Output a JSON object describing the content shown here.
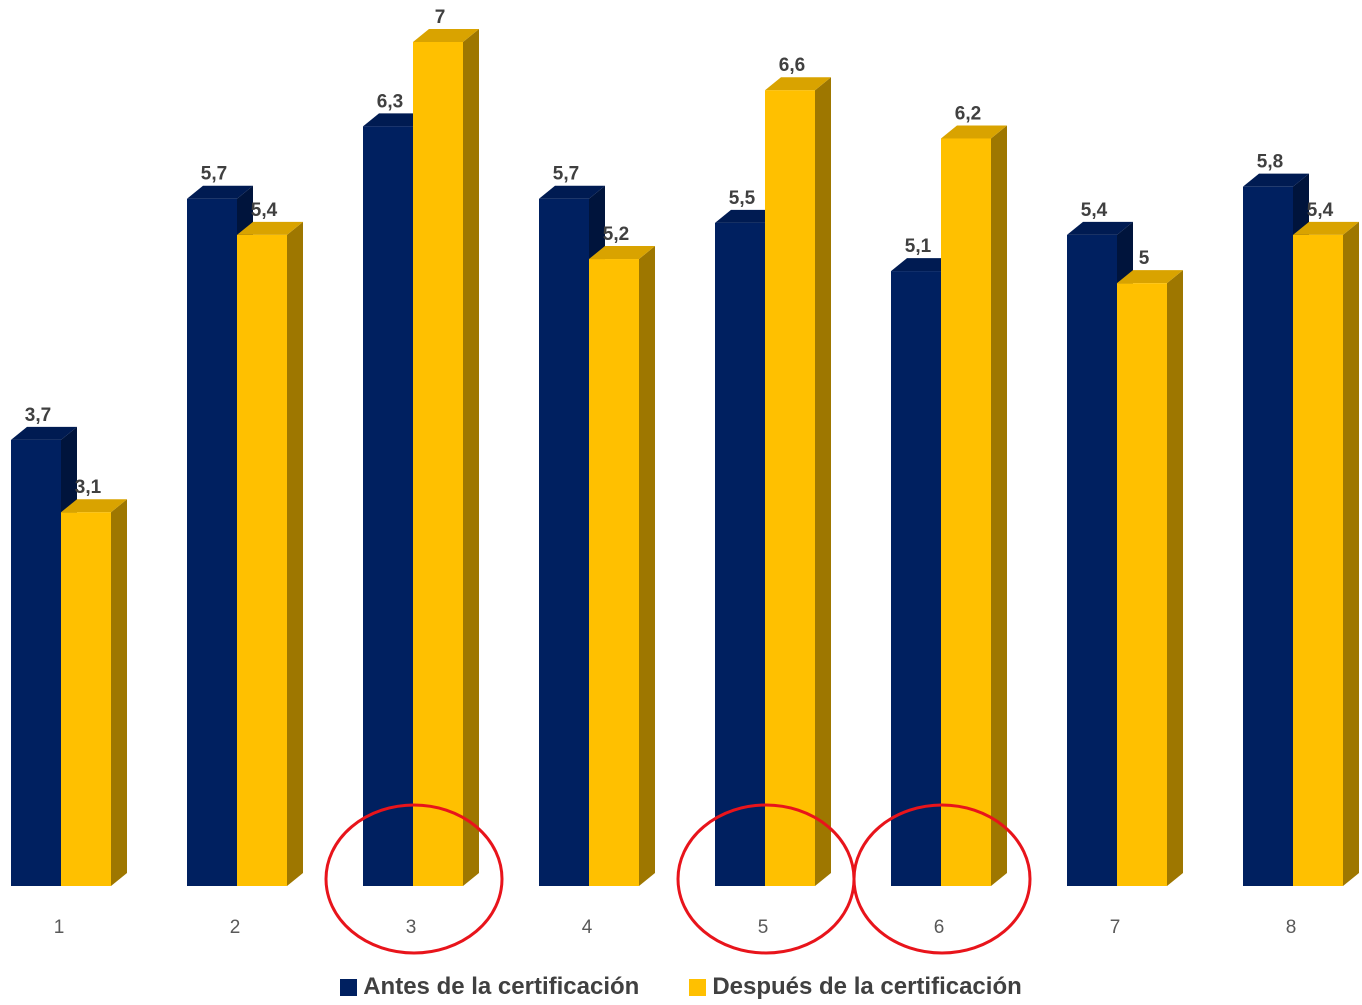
{
  "chart_data": {
    "type": "bar",
    "categories": [
      "1",
      "2",
      "3",
      "4",
      "5",
      "6",
      "7",
      "8"
    ],
    "series": [
      {
        "name": "Antes de la certificación",
        "values": [
          3.7,
          5.7,
          6.3,
          5.7,
          5.5,
          5.1,
          5.4,
          5.8
        ],
        "labels": [
          "3,7",
          "5,7",
          "6,3",
          "5,7",
          "5,5",
          "5,1",
          "5,4",
          "5,8"
        ],
        "color": "#002060"
      },
      {
        "name": "Después de la certificación",
        "values": [
          3.1,
          5.4,
          7,
          5.2,
          6.6,
          6.2,
          5,
          5.4
        ],
        "labels": [
          "3,1",
          "5,4",
          "7",
          "5,2",
          "6,6",
          "6,2",
          "5",
          "5,4"
        ],
        "color": "#FFC000"
      }
    ],
    "ylim": [
      0,
      7
    ],
    "grid": false,
    "legend_position": "bottom",
    "style": "3d-clustered-column",
    "highlighted_categories": [
      "3",
      "5",
      "6"
    ],
    "highlight_color": "#E8141B"
  }
}
